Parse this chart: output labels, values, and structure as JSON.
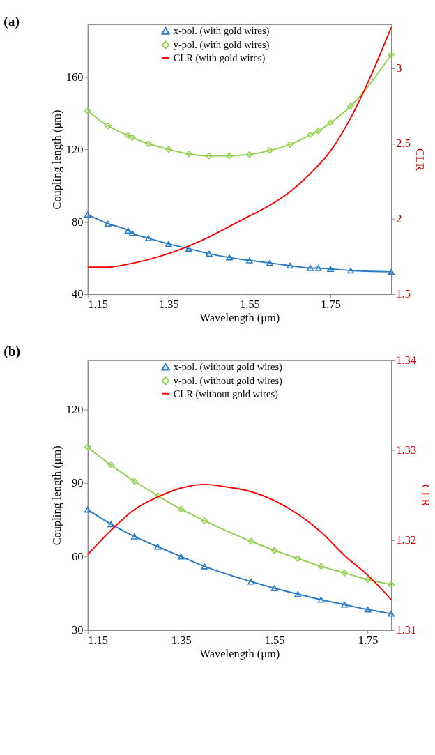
{
  "chart_data": [
    {
      "type": "line",
      "title": "(a)",
      "xlabel": "Wavelength (μm)",
      "ylabel": "Coupling length (μm)",
      "y2label": "CLR",
      "xlim": [
        1.15,
        1.9
      ],
      "xticks": [
        1.15,
        1.35,
        1.55,
        1.75
      ],
      "ylim": [
        40,
        189
      ],
      "yticks": [
        40,
        80,
        120,
        160
      ],
      "y2lim": [
        1.5,
        3.29
      ],
      "y2ticks": [
        1.5,
        2,
        2.5,
        3
      ],
      "legend": "top",
      "grid": false,
      "series": [
        {
          "name": "x-pol. (with gold wires)",
          "color": "#2a7ac0",
          "marker": "triangle",
          "x": [
            1.15,
            1.2,
            1.25,
            1.26,
            1.3,
            1.35,
            1.4,
            1.45,
            1.5,
            1.55,
            1.6,
            1.65,
            1.7,
            1.72,
            1.75,
            1.8,
            1.9
          ],
          "values": [
            84,
            79,
            75.2,
            73.8,
            71,
            67.8,
            65.2,
            62.4,
            60.3,
            58.7,
            57.3,
            55.8,
            54.5,
            54.5,
            54,
            53.1,
            52.4
          ]
        },
        {
          "name": "y-pol. (with gold wires)",
          "color": "#92d050",
          "marker": "diamond",
          "x": [
            1.15,
            1.2,
            1.25,
            1.26,
            1.3,
            1.35,
            1.4,
            1.45,
            1.5,
            1.55,
            1.6,
            1.65,
            1.7,
            1.72,
            1.75,
            1.8,
            1.9
          ],
          "values": [
            141.3,
            133,
            127.7,
            126.6,
            123.1,
            120,
            117.5,
            116.4,
            116.4,
            117.2,
            119.4,
            122.7,
            128,
            130.2,
            134.7,
            143.9,
            172.3
          ]
        },
        {
          "name": "CLR (with gold wires)",
          "color": "#ff0000",
          "marker": "none",
          "axis": "y2",
          "x": [
            1.15,
            1.2,
            1.25,
            1.3,
            1.35,
            1.4,
            1.45,
            1.5,
            1.55,
            1.6,
            1.65,
            1.7,
            1.75,
            1.8,
            1.85,
            1.9
          ],
          "values": [
            1.68,
            1.68,
            1.7,
            1.73,
            1.77,
            1.82,
            1.88,
            1.95,
            2.02,
            2.09,
            2.18,
            2.3,
            2.45,
            2.67,
            2.95,
            3.27
          ]
        }
      ]
    },
    {
      "type": "line",
      "title": "(b)",
      "xlabel": "Wavelength (μm)",
      "ylabel": "Coupling length (μm)",
      "y2label": "CLR",
      "xlim": [
        1.15,
        1.8
      ],
      "xticks": [
        1.15,
        1.35,
        1.55,
        1.75
      ],
      "ylim": [
        30,
        140
      ],
      "yticks": [
        30,
        60,
        90,
        120
      ],
      "y2lim": [
        1.31,
        1.34
      ],
      "y2ticks": [
        1.31,
        1.32,
        1.33,
        1.34
      ],
      "legend": "top",
      "grid": false,
      "series": [
        {
          "name": "x-pol. (without gold wires)",
          "color": "#2a7ac0",
          "marker": "triangle",
          "x": [
            1.15,
            1.2,
            1.25,
            1.3,
            1.35,
            1.4,
            1.5,
            1.55,
            1.6,
            1.65,
            1.7,
            1.75,
            1.8
          ],
          "values": [
            79.1,
            73.2,
            68.2,
            64,
            60,
            56,
            49.8,
            47.1,
            44.7,
            42.4,
            40.4,
            38.4,
            36.7
          ]
        },
        {
          "name": "y-pol. (without gold wires)",
          "color": "#92d050",
          "marker": "diamond",
          "x": [
            1.15,
            1.2,
            1.25,
            1.3,
            1.35,
            1.4,
            1.5,
            1.55,
            1.6,
            1.65,
            1.7,
            1.75,
            1.8
          ],
          "values": [
            104.6,
            97.3,
            90.7,
            84.8,
            79.3,
            74.6,
            66.2,
            62.5,
            59.2,
            56,
            53.3,
            50.6,
            48.6
          ]
        },
        {
          "name": "CLR (without gold wires)",
          "color": "#ff0000",
          "marker": "none",
          "axis": "y2",
          "x": [
            1.15,
            1.2,
            1.25,
            1.3,
            1.35,
            1.4,
            1.45,
            1.5,
            1.55,
            1.6,
            1.65,
            1.7,
            1.75,
            1.8
          ],
          "values": [
            1.3184,
            1.3211,
            1.3234,
            1.3248,
            1.3258,
            1.3262,
            1.3259,
            1.3254,
            1.3244,
            1.3229,
            1.3209,
            1.3183,
            1.3161,
            1.3134
          ]
        }
      ]
    }
  ]
}
